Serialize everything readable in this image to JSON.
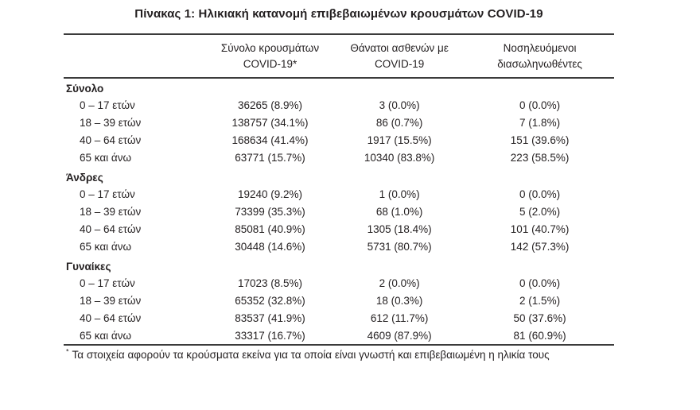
{
  "title": "Πίνακας 1: Ηλικιακή κατανομή επιβεβαιωμένων κρουσμάτων COVID-19",
  "table": {
    "columns": [
      {
        "line1": "Σύνολο κρουσμάτων",
        "line2": "COVID-19*"
      },
      {
        "line1": "Θάνατοι ασθενών με",
        "line2": "COVID-19"
      },
      {
        "line1": "Νοσηλευόμενοι",
        "line2": "διασωληνωθέντες"
      }
    ],
    "groups": [
      {
        "label": "Σύνολο",
        "rows": [
          {
            "label": "0 – 17 ετών",
            "cases": "36265 (8.9%)",
            "deaths": "3 (0.0%)",
            "intubated": "0 (0.0%)"
          },
          {
            "label": "18 – 39 ετών",
            "cases": "138757 (34.1%)",
            "deaths": "86 (0.7%)",
            "intubated": "7 (1.8%)"
          },
          {
            "label": "40 – 64 ετών",
            "cases": "168634 (41.4%)",
            "deaths": "1917 (15.5%)",
            "intubated": "151 (39.6%)"
          },
          {
            "label": "65 και άνω",
            "cases": "63771 (15.7%)",
            "deaths": "10340 (83.8%)",
            "intubated": "223 (58.5%)"
          }
        ]
      },
      {
        "label": "Άνδρες",
        "rows": [
          {
            "label": "0 – 17 ετών",
            "cases": "19240 (9.2%)",
            "deaths": "1 (0.0%)",
            "intubated": "0 (0.0%)"
          },
          {
            "label": "18 – 39 ετών",
            "cases": "73399 (35.3%)",
            "deaths": "68 (1.0%)",
            "intubated": "5 (2.0%)"
          },
          {
            "label": "40 – 64 ετών",
            "cases": "85081 (40.9%)",
            "deaths": "1305 (18.4%)",
            "intubated": "101 (40.7%)"
          },
          {
            "label": "65 και άνω",
            "cases": "30448 (14.6%)",
            "deaths": "5731 (80.7%)",
            "intubated": "142 (57.3%)"
          }
        ]
      },
      {
        "label": "Γυναίκες",
        "rows": [
          {
            "label": "0 – 17 ετών",
            "cases": "17023 (8.5%)",
            "deaths": "2 (0.0%)",
            "intubated": "0 (0.0%)"
          },
          {
            "label": "18 – 39 ετών",
            "cases": "65352 (32.8%)",
            "deaths": "18 (0.3%)",
            "intubated": "2 (1.5%)"
          },
          {
            "label": "40 – 64 ετών",
            "cases": "83537 (41.9%)",
            "deaths": "612 (11.7%)",
            "intubated": "50 (37.6%)"
          },
          {
            "label": "65 και άνω",
            "cases": "33317 (16.7%)",
            "deaths": "4609 (87.9%)",
            "intubated": "81 (60.9%)"
          }
        ]
      }
    ]
  },
  "footnote": {
    "marker": "*",
    "text": "Τα στοιχεία αφορούν τα κρούσματα εκείνα για τα οποία είναι γνωστή και επιβεβαιωμένη η ηλικία τους"
  },
  "colors": {
    "text": "#231f20",
    "rule": "#3b3b3b",
    "background": "#ffffff"
  }
}
